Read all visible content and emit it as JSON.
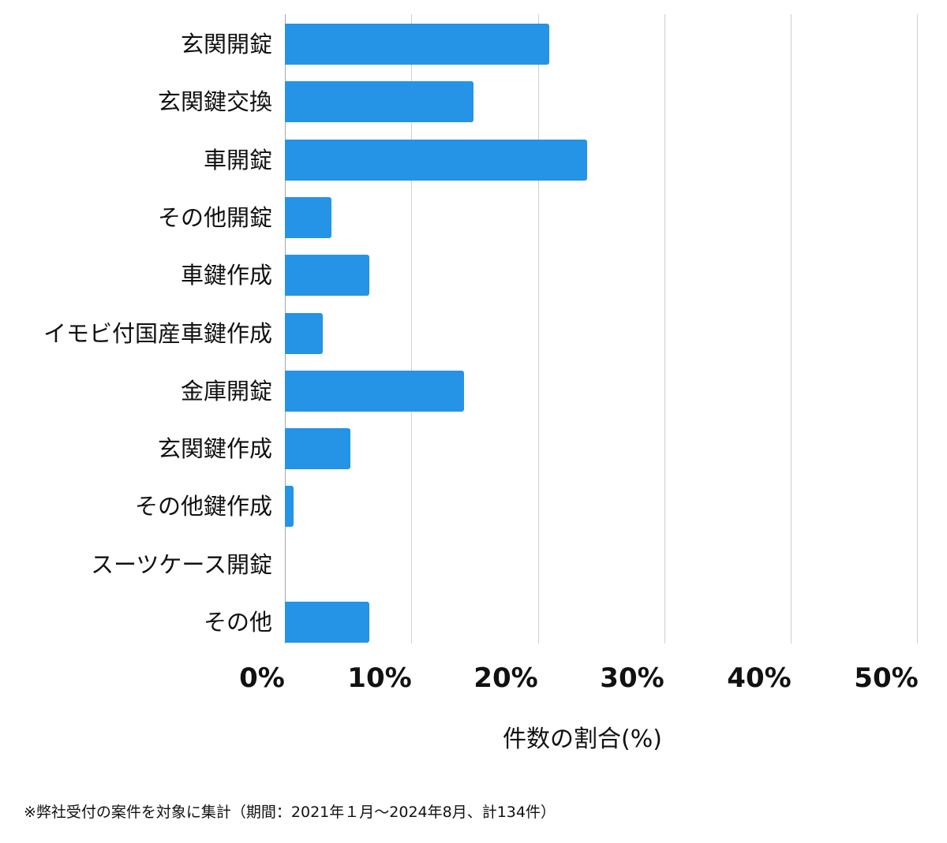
{
  "chart_data": {
    "type": "bar",
    "orientation": "horizontal",
    "title": "",
    "xlabel": "件数の割合(%)",
    "ylabel": "",
    "xlim": [
      0,
      50
    ],
    "grid": true,
    "legend": null,
    "categories": [
      "玄関開錠",
      "玄関鍵交換",
      "車開錠",
      "その他開錠",
      "車鍵作成",
      "イモビ付国産車鍵作成",
      "金庫開錠",
      "玄関鍵作成",
      "その他鍵作成",
      "スーツケース開錠",
      "その他"
    ],
    "values": [
      20.9,
      14.9,
      23.9,
      3.7,
      6.7,
      3.0,
      14.2,
      5.2,
      0.7,
      0,
      6.7
    ],
    "x_ticks": [
      "0%",
      "10%",
      "20%",
      "30%",
      "40%",
      "50%"
    ],
    "bar_color": "#2593e6",
    "note": "※弊社受付の案件を対象に集計（期間：2021年１月～2024年8月、計134件）"
  }
}
